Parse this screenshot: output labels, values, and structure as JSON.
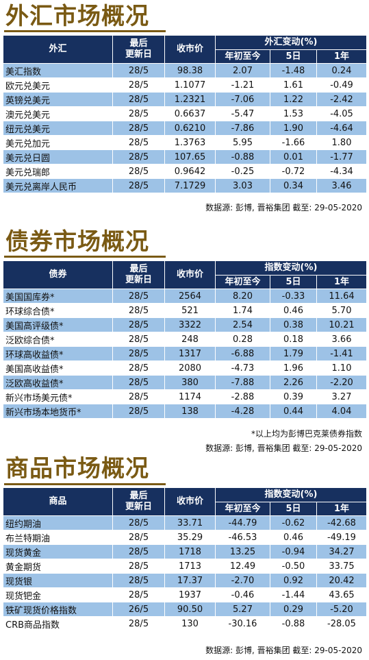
{
  "columns": {
    "updated": "最后更新日",
    "close": "收市价",
    "ytd": "年初至今",
    "d5": "5日",
    "y1": "1年"
  },
  "fx": {
    "title": "外汇市场概况",
    "col_name": "外汇",
    "col_change": "外汇变动(%)",
    "rows": [
      [
        "美汇指数",
        "28/5",
        "98.38",
        "2.07",
        "-1.48",
        "0.24"
      ],
      [
        "欧元兑美元",
        "28/5",
        "1.1077",
        "-1.21",
        "1.61",
        "-0.49"
      ],
      [
        "英镑兑美元",
        "28/5",
        "1.2321",
        "-7.06",
        "1.22",
        "-2.42"
      ],
      [
        "澳元兑美元",
        "28/5",
        "0.6637",
        "-5.47",
        "1.53",
        "-4.05"
      ],
      [
        "纽元兑美元",
        "28/5",
        "0.6210",
        "-7.86",
        "1.90",
        "-4.64"
      ],
      [
        "美元兑加元",
        "28/5",
        "1.3763",
        "5.95",
        "-1.66",
        "1.80"
      ],
      [
        "美元兑日圆",
        "28/5",
        "107.65",
        "-0.88",
        "0.01",
        "-1.77"
      ],
      [
        "美元兑瑞郎",
        "28/5",
        "0.9642",
        "-0.25",
        "-0.72",
        "-4.34"
      ],
      [
        "美元兑离岸人民币",
        "28/5",
        "7.1729",
        "3.03",
        "0.34",
        "3.46"
      ]
    ],
    "source": "数据源: 彭博, 晋裕集团 截至: 29-05-2020"
  },
  "bond": {
    "title": "债券市场概况",
    "col_name": "债券",
    "col_change": "指数变动(%)",
    "rows": [
      [
        "美国国库券*",
        "28/5",
        "2564",
        "8.20",
        "-0.33",
        "11.64"
      ],
      [
        "环球综合债*",
        "28/5",
        "521",
        "1.74",
        "0.46",
        "5.70"
      ],
      [
        "美国高评级债*",
        "28/5",
        "3322",
        "2.54",
        "0.38",
        "10.21"
      ],
      [
        "泛欧综合债*",
        "28/5",
        "248",
        "0.28",
        "0.18",
        "3.66"
      ],
      [
        "环球高收益债*",
        "28/5",
        "1317",
        "-6.88",
        "1.79",
        "-1.41"
      ],
      [
        "美国高收益债*",
        "28/5",
        "2080",
        "-4.73",
        "1.96",
        "1.10"
      ],
      [
        "泛欧高收益债*",
        "28/5",
        "380",
        "-7.88",
        "2.26",
        "-2.20"
      ],
      [
        "新兴市场美元债*",
        "28/5",
        "1174",
        "-2.88",
        "0.39",
        "3.27"
      ],
      [
        "新兴市场本地货币*",
        "28/5",
        "138",
        "-4.28",
        "0.44",
        "4.04"
      ]
    ],
    "footnote": "*以上均为彭博巴克莱债券指数",
    "source": "数据源: 彭博, 晋裕集团 截至: 29-05-2020"
  },
  "commodity": {
    "title": "商品市场概况",
    "col_name": "商品",
    "col_change": "指数变动(%)",
    "rows": [
      [
        "纽约期油",
        "28/5",
        "33.71",
        "-44.79",
        "-0.62",
        "-42.68"
      ],
      [
        "布兰特期油",
        "28/5",
        "35.29",
        "-46.53",
        "0.46",
        "-49.19"
      ],
      [
        "现货黄金",
        "28/5",
        "1718",
        "13.25",
        "-0.94",
        "34.27"
      ],
      [
        "黄金期货",
        "28/5",
        "1713",
        "12.49",
        "-0.50",
        "33.75"
      ],
      [
        "现货银",
        "28/5",
        "17.37",
        "-2.70",
        "0.92",
        "20.42"
      ],
      [
        "现货钯金",
        "28/5",
        "1937",
        "-0.46",
        "-1.44",
        "43.65"
      ],
      [
        "铁矿现货价格指数",
        "26/5",
        "90.50",
        "5.27",
        "0.29",
        "-5.20"
      ],
      [
        "CRB商品指数",
        "28/5",
        "130",
        "-30.16",
        "-0.88",
        "-28.05"
      ]
    ],
    "source": "数据源: 彭博, 晋裕集团 截至: 29-05-2020"
  },
  "colors": {
    "header_bg": "#17305f",
    "row_alt": "#9dc2e6",
    "title": "#7a5a14"
  }
}
